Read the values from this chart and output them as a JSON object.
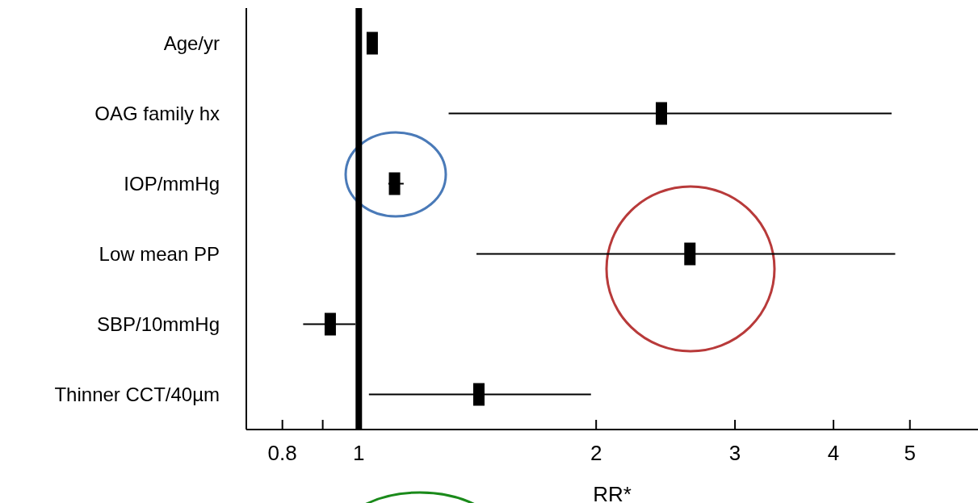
{
  "chart_data": {
    "type": "scatter",
    "orientation": "horizontal",
    "xlabel": "RR*",
    "categories": [
      "Age/yr",
      "OAG family hx",
      "IOP/mmHg",
      "Low mean PP",
      "SBP/10mmHg",
      "Thinner CCT/40µm"
    ],
    "values": [
      1.04,
      2.42,
      1.11,
      2.63,
      0.92,
      1.42
    ],
    "errors": [
      null,
      [
        1.3,
        4.74
      ],
      [
        1.09,
        1.14
      ],
      [
        1.41,
        4.79
      ],
      [
        0.85,
        0.99
      ],
      [
        1.03,
        1.97
      ]
    ],
    "color": "#000000",
    "marker": "square",
    "log": "x",
    "xlim": [
      0.72,
      6.1
    ],
    "xticks": [
      0.8,
      {
        "value": 0.9,
        "label": null
      },
      1,
      2,
      3,
      4,
      5
    ],
    "ref_lines": [
      {
        "axis": "x",
        "value": 1,
        "color": "#000000"
      }
    ]
  }
}
